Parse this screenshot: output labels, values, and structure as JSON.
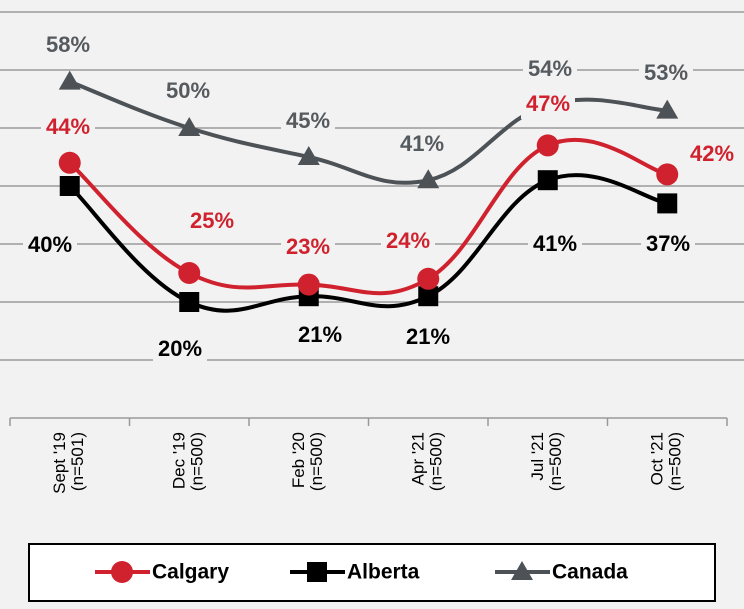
{
  "chart_data": {
    "type": "line",
    "categories": [
      "Sept '19 (n=501)",
      "Dec '19 (n=500)",
      "Feb '20 (n=500)",
      "Apr '21 (n=500)",
      "Jul '21 (n=500)",
      "Oct '21 (n=500)"
    ],
    "series": [
      {
        "name": "Calgary",
        "color": "#d0222e",
        "values": [
          44,
          25,
          23,
          24,
          47,
          42
        ],
        "value_labels": [
          "44%",
          "25%",
          "23%",
          "24%",
          "47%",
          "42%"
        ]
      },
      {
        "name": "Alberta",
        "color": "#000000",
        "values": [
          40,
          20,
          21,
          21,
          41,
          37
        ],
        "value_labels": [
          "40%",
          "20%",
          "21%",
          "21%",
          "41%",
          "37%"
        ]
      },
      {
        "name": "Canada",
        "color": "#4d5257",
        "values": [
          58,
          50,
          45,
          41,
          54,
          53
        ],
        "value_labels": [
          "58%",
          "50%",
          "45%",
          "41%",
          "54%",
          "53%"
        ]
      }
    ],
    "ylim": [
      0,
      70
    ],
    "yticks": [
      0,
      10,
      20,
      30,
      40,
      50,
      60,
      70
    ],
    "grid": true
  }
}
